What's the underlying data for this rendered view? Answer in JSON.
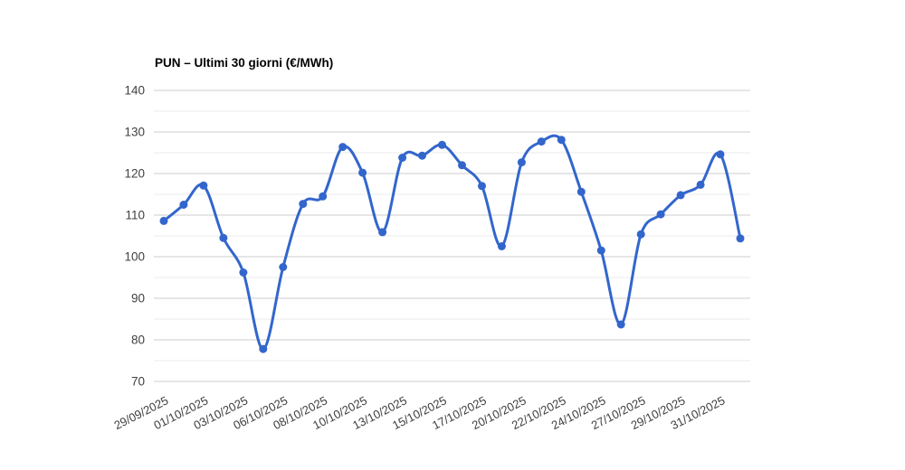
{
  "chart_data": {
    "type": "line",
    "title": "PUN – Ultimi 30 giorni (€/MWh)",
    "curve": "smooth",
    "legend": "none",
    "grid": "major+minor",
    "num_points": 30,
    "x_tick_labels": [
      "29/09/2025",
      "01/10/2025",
      "03/10/2025",
      "06/10/2025",
      "08/10/2025",
      "10/10/2025",
      "13/10/2025",
      "15/10/2025",
      "17/10/2025",
      "20/10/2025",
      "22/10/2025",
      "24/10/2025",
      "27/10/2025",
      "29/10/2025",
      "31/10/2025"
    ],
    "x_label_every": 2,
    "values": [
      108.6,
      112.5,
      117.1,
      104.5,
      96.2,
      77.8,
      97.5,
      112.7,
      114.5,
      126.4,
      120.2,
      105.9,
      123.8,
      124.3,
      126.9,
      122.0,
      117.0,
      102.5,
      122.7,
      127.7,
      128.1,
      115.6,
      101.5,
      83.7,
      105.4,
      110.2,
      114.8,
      117.3,
      124.6,
      104.4
    ],
    "ylim": [
      70,
      140
    ],
    "y_ticks": [
      70,
      80,
      90,
      100,
      110,
      120,
      130,
      140
    ],
    "colors": {
      "series": "#3366cc",
      "major_grid": "#cccccc",
      "minor_grid": "#ebebeb",
      "axis_text": "#404040",
      "title": "#000000",
      "background": "#ffffff"
    }
  }
}
